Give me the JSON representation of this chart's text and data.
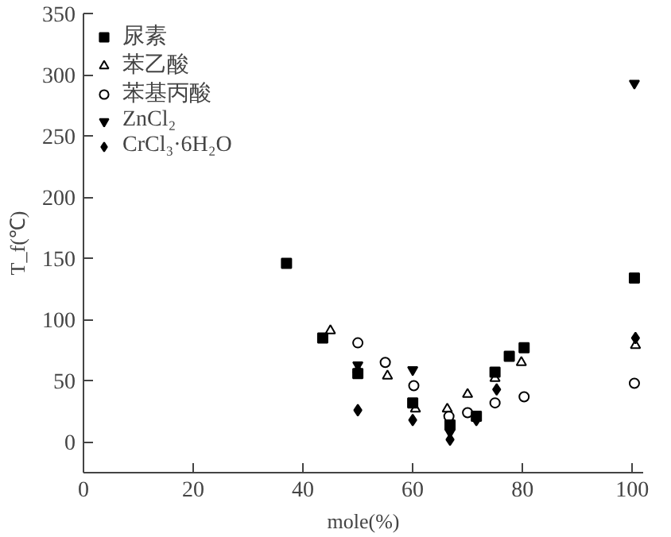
{
  "chart_data": {
    "type": "scatter",
    "xlabel": "mole(%)",
    "ylabel": "T_f(℃)",
    "xlim": [
      0,
      102
    ],
    "ylim": [
      -25,
      350
    ],
    "xticks": [
      0,
      20,
      40,
      60,
      80,
      100
    ],
    "yticks": [
      0,
      50,
      100,
      150,
      200,
      250,
      300,
      350
    ],
    "grid": false,
    "legend": "top left",
    "series": [
      {
        "name": "尿素",
        "color": "#000000",
        "x": [
          37,
          43.6,
          50,
          60,
          66.8,
          71.6,
          75,
          77.6,
          80.3,
          100.4
        ],
        "values": [
          146,
          85,
          56,
          32,
          14,
          21,
          57,
          70,
          77,
          134
        ]
      },
      {
        "name": "苯乙酸",
        "color": "#000000",
        "x": [
          45,
          50,
          55.4,
          60.5,
          66.3,
          70,
          75,
          79.8,
          100.6
        ],
        "values": [
          91,
          59,
          54,
          27,
          27,
          39,
          52,
          65,
          79
        ]
      },
      {
        "name": "苯基丙酸",
        "color": "#000000",
        "x": [
          50,
          55,
          60.2,
          66.6,
          70,
          75,
          80.3,
          100.4
        ],
        "values": [
          81,
          65,
          46,
          21,
          24,
          32,
          37,
          48
        ]
      },
      {
        "name": "ZnCl₂",
        "color": "#000000",
        "x": [
          50,
          60,
          66.8,
          100.4
        ],
        "values": [
          63,
          59,
          8,
          293
        ]
      },
      {
        "name": "CrCl₃·6H₂O",
        "color": "#000000",
        "x": [
          50,
          60,
          66.8,
          71.6,
          75.3,
          100.6
        ],
        "values": [
          26,
          18,
          2,
          18,
          43,
          85
        ]
      }
    ]
  }
}
